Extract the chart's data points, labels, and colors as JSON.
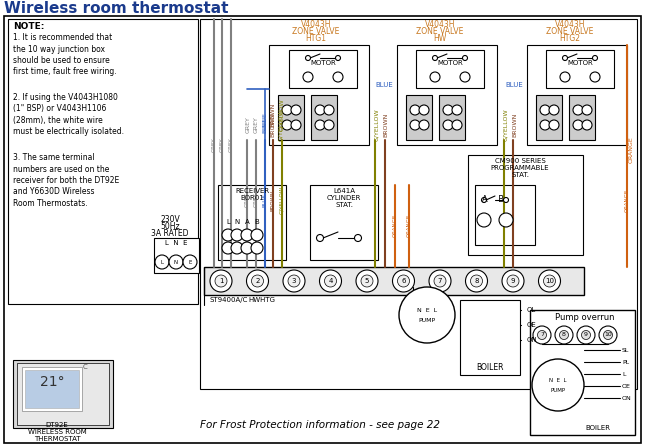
{
  "title": "Wireless room thermostat",
  "title_color": "#1a3a8c",
  "title_fontsize": 11,
  "bg_color": "#ffffff",
  "zv_color": "#c87820",
  "blue_color": "#3060c0",
  "grey_color": "#808080",
  "brown_color": "#804020",
  "gyellow_color": "#808000",
  "orange_color": "#d06010",
  "note_text": [
    "NOTE:",
    "1. It is recommended that",
    "the 10 way junction box",
    "should be used to ensure",
    "first time, fault free wiring.",
    "2. If using the V4043H1080",
    "(1\" BSP) or V4043H1106",
    "(28mm), the white wire",
    "must be electrically isolated.",
    "3. The same terminal",
    "numbers are used on the",
    "receiver for both the DT92E",
    "and Y6630D Wireless",
    "Room Thermostats."
  ],
  "frost_text": "For Frost Protection information - see page 22"
}
